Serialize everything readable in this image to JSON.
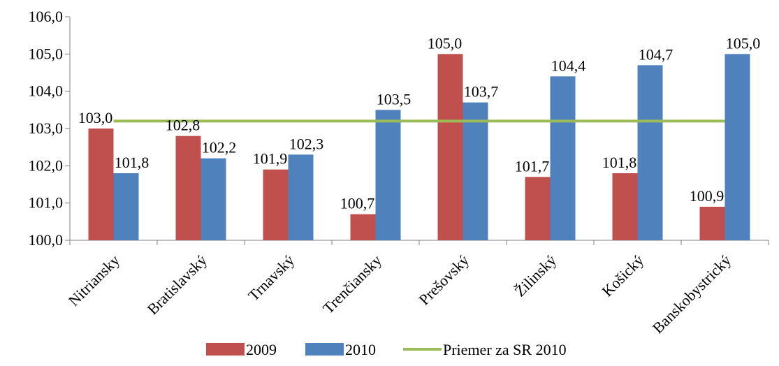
{
  "chart_data": {
    "type": "bar",
    "categories": [
      "Nitriansky",
      "Bratislavský",
      "Trnavský",
      "Trenčiansky",
      "Prešovský",
      "Žilinský",
      "Košický",
      "Banskobystrický"
    ],
    "series": [
      {
        "name": "2009",
        "color": "#C0504D",
        "values": [
          103.0,
          102.8,
          101.9,
          100.7,
          105.0,
          101.7,
          101.8,
          100.9
        ],
        "labels": [
          "103,0",
          "102,8",
          "101,9",
          "100,7",
          "105,0",
          "101,7",
          "101,8",
          "100,9"
        ]
      },
      {
        "name": "2010",
        "color": "#4F81BD",
        "values": [
          101.8,
          102.2,
          102.3,
          103.5,
          103.7,
          104.4,
          104.7,
          105.0
        ],
        "labels": [
          "101,8",
          "102,2",
          "102,3",
          "103,5",
          "103,7",
          "104,4",
          "104,7",
          "105,0"
        ]
      }
    ],
    "reference_line": {
      "name": "Priemer za SR 2010",
      "color": "#9BBB59",
      "value": 103.2
    },
    "ylim": [
      100,
      106
    ],
    "yticks": [
      100,
      101,
      102,
      103,
      104,
      105,
      106
    ],
    "ytick_labels": [
      "100,0",
      "101,0",
      "102,0",
      "103,0",
      "104,0",
      "105,0",
      "106,0"
    ],
    "grid": false,
    "legend_position": "bottom",
    "title": "",
    "xlabel": "",
    "ylabel": ""
  }
}
